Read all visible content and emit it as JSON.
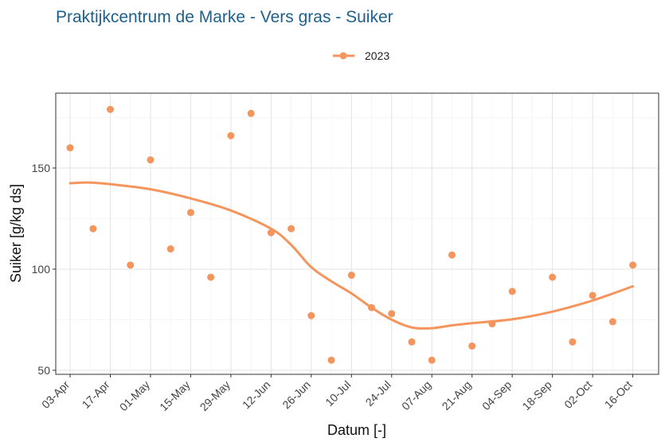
{
  "chart_data": {
    "type": "scatter",
    "title": "Praktijkcentrum de Marke - Vers gras - Suiker",
    "xlabel": "Datum [-]",
    "ylabel": "Suiker [g/kg ds]",
    "x_tick_labels": [
      "03-Apr",
      "17-Apr",
      "01-May",
      "15-May",
      "29-May",
      "12-Jun",
      "26-Jun",
      "10-Jul",
      "24-Jul",
      "07-Aug",
      "21-Aug",
      "04-Sep",
      "18-Sep",
      "02-Oct",
      "16-Oct"
    ],
    "x_ticks": [
      "2023-04-03",
      "2023-04-17",
      "2023-05-01",
      "2023-05-15",
      "2023-05-29",
      "2023-06-12",
      "2023-06-26",
      "2023-07-10",
      "2023-07-24",
      "2023-08-07",
      "2023-08-21",
      "2023-09-04",
      "2023-09-18",
      "2023-10-02",
      "2023-10-16"
    ],
    "xlim": [
      "2023-03-29",
      "2023-10-25"
    ],
    "y_ticks": [
      50,
      100,
      150
    ],
    "ylim": [
      48,
      187
    ],
    "grid": true,
    "legend_position": "top",
    "series": [
      {
        "name": "2023",
        "color": "#f4955e",
        "points": [
          {
            "x": "2023-04-03",
            "y": 160
          },
          {
            "x": "2023-04-11",
            "y": 120
          },
          {
            "x": "2023-04-17",
            "y": 179
          },
          {
            "x": "2023-04-24",
            "y": 102
          },
          {
            "x": "2023-05-01",
            "y": 154
          },
          {
            "x": "2023-05-08",
            "y": 110
          },
          {
            "x": "2023-05-15",
            "y": 128
          },
          {
            "x": "2023-05-22",
            "y": 96
          },
          {
            "x": "2023-05-29",
            "y": 166
          },
          {
            "x": "2023-06-05",
            "y": 177
          },
          {
            "x": "2023-06-12",
            "y": 118
          },
          {
            "x": "2023-06-19",
            "y": 120
          },
          {
            "x": "2023-06-26",
            "y": 77
          },
          {
            "x": "2023-07-03",
            "y": 55
          },
          {
            "x": "2023-07-10",
            "y": 97
          },
          {
            "x": "2023-07-17",
            "y": 81
          },
          {
            "x": "2023-07-24",
            "y": 78
          },
          {
            "x": "2023-07-31",
            "y": 64
          },
          {
            "x": "2023-08-07",
            "y": 55
          },
          {
            "x": "2023-08-14",
            "y": 107
          },
          {
            "x": "2023-08-21",
            "y": 62
          },
          {
            "x": "2023-08-28",
            "y": 73
          },
          {
            "x": "2023-09-04",
            "y": 89
          },
          {
            "x": "2023-09-18",
            "y": 96
          },
          {
            "x": "2023-09-25",
            "y": 64
          },
          {
            "x": "2023-10-02",
            "y": 87
          },
          {
            "x": "2023-10-09",
            "y": 74
          },
          {
            "x": "2023-10-16",
            "y": 102
          }
        ],
        "trend": [
          {
            "x": "2023-04-03",
            "y": 142.5
          },
          {
            "x": "2023-04-10",
            "y": 142.8
          },
          {
            "x": "2023-04-17",
            "y": 142.0
          },
          {
            "x": "2023-05-01",
            "y": 139.5
          },
          {
            "x": "2023-05-15",
            "y": 135.0
          },
          {
            "x": "2023-05-29",
            "y": 129.0
          },
          {
            "x": "2023-06-12",
            "y": 120.0
          },
          {
            "x": "2023-06-19",
            "y": 112.0
          },
          {
            "x": "2023-06-26",
            "y": 101.0
          },
          {
            "x": "2023-07-03",
            "y": 94.0
          },
          {
            "x": "2023-07-10",
            "y": 88.0
          },
          {
            "x": "2023-07-17",
            "y": 81.0
          },
          {
            "x": "2023-07-24",
            "y": 75.0
          },
          {
            "x": "2023-07-31",
            "y": 71.2
          },
          {
            "x": "2023-08-07",
            "y": 70.8
          },
          {
            "x": "2023-08-14",
            "y": 72.2
          },
          {
            "x": "2023-08-21",
            "y": 73.3
          },
          {
            "x": "2023-09-04",
            "y": 75.2
          },
          {
            "x": "2023-09-18",
            "y": 79.0
          },
          {
            "x": "2023-10-02",
            "y": 84.5
          },
          {
            "x": "2023-10-16",
            "y": 91.5
          }
        ]
      }
    ]
  }
}
